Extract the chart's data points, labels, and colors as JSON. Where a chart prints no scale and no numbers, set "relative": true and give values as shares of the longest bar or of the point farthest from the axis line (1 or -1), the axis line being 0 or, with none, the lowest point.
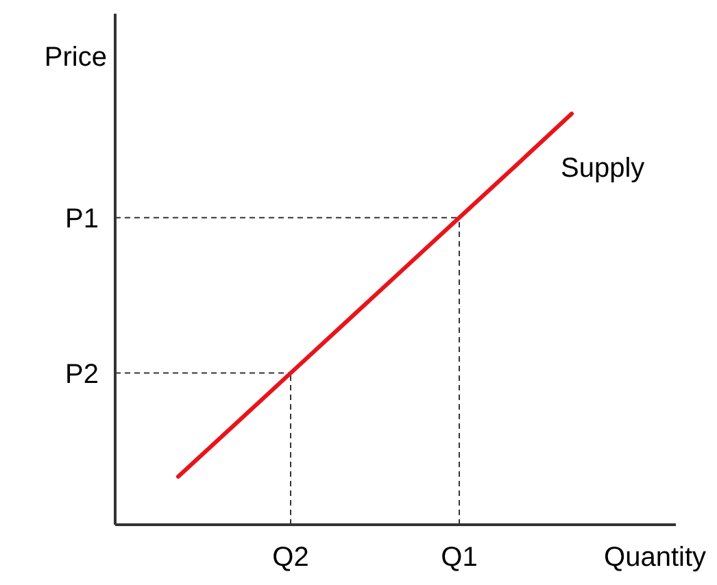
{
  "chart_data": {
    "type": "line",
    "xlabel": "Quantity",
    "ylabel": "Price",
    "relative": true,
    "categories": [
      null,
      null,
      "Q2",
      null,
      null,
      "Q1",
      null,
      null
    ],
    "grid": false,
    "marker": "none",
    "line_style": "solid",
    "series": [
      {
        "name": "Supply",
        "color": "#e8141b",
        "values": [
          0.117,
          0.243,
          0.369,
          0.495,
          0.621,
          0.747,
          0.873,
          1
        ]
      }
    ],
    "ref_lines": [
      {
        "axis": "y",
        "value": 0.747,
        "label": "P1",
        "color": "#333333",
        "line_style": "dashed"
      },
      {
        "axis": "y",
        "value": 0.369,
        "label": "P2",
        "color": "#333333",
        "line_style": "dashed"
      },
      {
        "axis": "x",
        "value": "Q1",
        "color": "#333333",
        "line_style": "dashed"
      },
      {
        "axis": "x",
        "value": "Q2",
        "color": "#333333",
        "line_style": "dashed"
      }
    ]
  }
}
